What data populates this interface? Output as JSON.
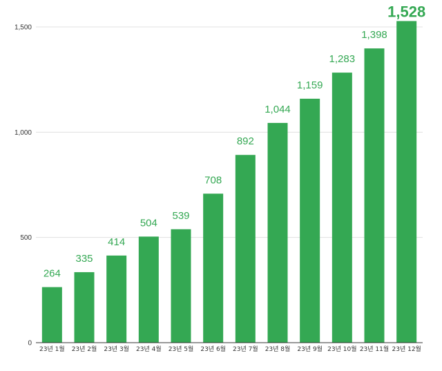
{
  "chart_data": {
    "type": "bar",
    "categories": [
      "23년 1월",
      "23년 2월",
      "23년 3월",
      "23년 4월",
      "23년 5월",
      "23년 6월",
      "23년 7월",
      "23년 8월",
      "23년 9월",
      "23년 10월",
      "23년 11월",
      "23년 12월"
    ],
    "values": [
      264,
      335,
      414,
      504,
      539,
      708,
      892,
      1044,
      1159,
      1283,
      1398,
      1528
    ],
    "data_labels": [
      "264",
      "335",
      "414",
      "504",
      "539",
      "708",
      "892",
      "1,044",
      "1,159",
      "1,283",
      "1,398",
      "1,528"
    ],
    "yticks": [
      0,
      500,
      1000,
      1500
    ],
    "ytick_labels": [
      "0",
      "500",
      "1,000",
      "1,500"
    ],
    "ylim": [
      0,
      1500
    ],
    "grid": true,
    "bar_color": "#34a853",
    "label_color": "#34a853"
  }
}
